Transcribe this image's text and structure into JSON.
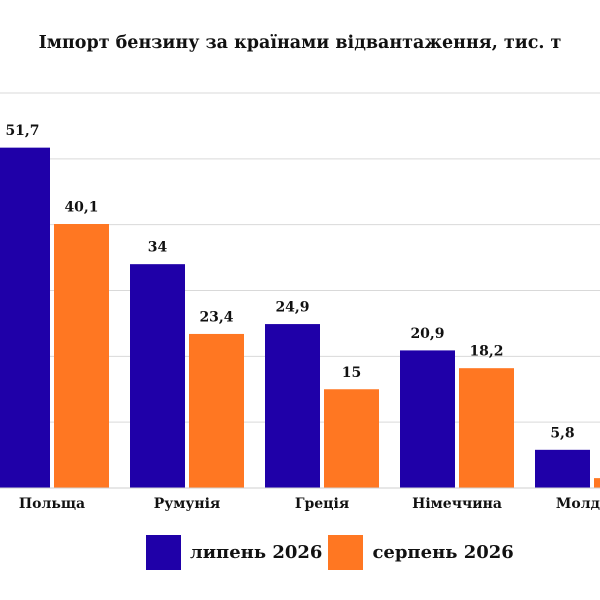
{
  "chart_data": {
    "type": "bar",
    "title": "Імпорт бензину за країнами відвантаження, тис. т",
    "xlabel": "",
    "ylabel": "",
    "categories": [
      "Польща",
      "Румунія",
      "Греція",
      "Німеччина",
      "Молдова"
    ],
    "series": [
      {
        "name": "липень 2026",
        "values": [
          51.7,
          34,
          24.9,
          20.9,
          5.8
        ],
        "labels": [
          "51,7",
          "34",
          "24,9",
          "20,9",
          "5,8"
        ],
        "color": "#1f00a8"
      },
      {
        "name": "серпень 2026",
        "values": [
          40.1,
          23.4,
          15,
          18.2,
          1.5
        ],
        "labels": [
          "40,1",
          "23,4",
          "15",
          "18,2",
          ""
        ],
        "color": "#ff7722"
      }
    ],
    "ylim": [
      0,
      60
    ],
    "grid": true,
    "legend_position": "bottom"
  }
}
